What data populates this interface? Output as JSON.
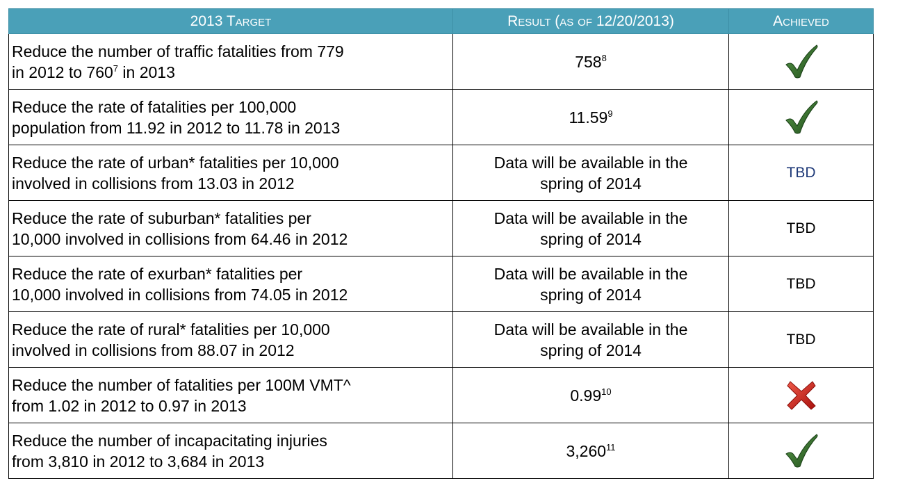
{
  "table": {
    "header": [
      "2013 Target",
      "Result (as of 12/20/2013)",
      "Achieved"
    ],
    "rows": [
      {
        "target": [
          "Reduce the number of traffic fatalities from 779",
          "in 2012 to 760"
        ],
        "target_note": "7",
        "target_end": " in 2013",
        "result": "758",
        "result_note": "8"
      },
      {
        "target": [
          "Reduce the rate of fatalities per 100,000",
          "population from 11.92 in 2012 to 11.78 in 2013"
        ],
        "result": "11.59",
        "result_note": "9"
      },
      {
        "target": [
          "Reduce the rate of urban* fatalities per 10,000",
          "involved in collisions from 13.03 in 2012"
        ],
        "result_lines": [
          "Data will be available in the",
          "spring of 2014"
        ],
        "achieved": "TBD"
      },
      {
        "target": [
          "Reduce the rate of suburban* fatalities per",
          "10,000 involved in collisions from 64.46 in 2012"
        ],
        "result_lines": [
          "Data will be available in the",
          "spring of 2014"
        ],
        "achieved": "TBD"
      },
      {
        "target": [
          "Reduce the rate of exurban* fatalities per",
          "10,000 involved in collisions from 74.05 in 2012"
        ],
        "result_lines": [
          "Data will be available in the",
          "spring of 2014"
        ],
        "achieved": "TBD"
      },
      {
        "target": [
          "Reduce the rate of rural* fatalities per 10,000",
          "involved in collisions from 88.07 in 2012"
        ],
        "result_lines": [
          "Data will be available in the",
          "spring of 2014"
        ],
        "achieved": "TBD"
      },
      {
        "target": [
          "Reduce the number of fatalities per 100M VMT^",
          "from 1.02 in 2012 to 0.97 in 2013"
        ],
        "result": "0.99",
        "result_note": "10"
      },
      {
        "target": [
          "Reduce the number of incapacitating injuries",
          "from 3,810 in 2012 to 3,684 in 2013"
        ],
        "result": "3,260",
        "result_note": "11"
      }
    ]
  }
}
